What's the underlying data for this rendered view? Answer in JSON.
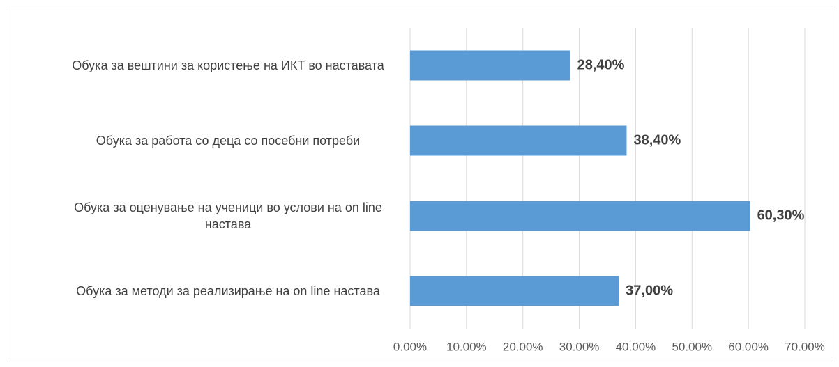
{
  "chart_data": {
    "type": "bar",
    "orientation": "horizontal",
    "categories": [
      "Обука за вештини за користење на ИКТ во наставата",
      "Обука за работа со деца со посебни потреби",
      "Обука за оценување на ученици во услови на on line настава",
      "Обука за методи за реализирање на on line настава"
    ],
    "values": [
      28.4,
      38.4,
      60.3,
      37.0
    ],
    "value_labels": [
      "28,40%",
      "38,40%",
      "60,30%",
      "37,00%"
    ],
    "color": "#5b9bd5",
    "xlim": [
      0,
      70
    ],
    "xticks": [
      {
        "value": 0,
        "label": "0.00%"
      },
      {
        "value": 10,
        "label": "10.00%"
      },
      {
        "value": 20,
        "label": "20.00%"
      },
      {
        "value": 30,
        "label": "30.00%"
      },
      {
        "value": 40,
        "label": "40.00%"
      },
      {
        "value": 50,
        "label": "50.00%"
      },
      {
        "value": 60,
        "label": "60.00%"
      },
      {
        "value": 70,
        "label": "70.00%"
      }
    ],
    "grid": true
  }
}
